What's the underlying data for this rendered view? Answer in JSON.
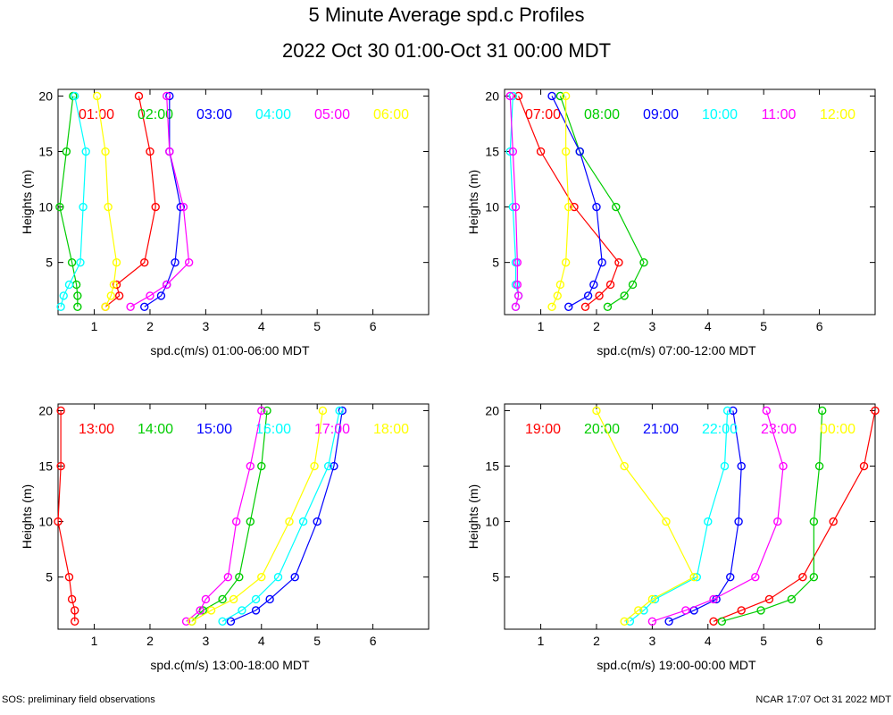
{
  "title": "5 Minute Average spd.c Profiles",
  "subtitle": "2022 Oct 30 01:00-Oct 31 00:00 MDT",
  "footer_left": "SOS: preliminary field observations",
  "footer_right": "NCAR 17:07 Oct 31 2022 MDT",
  "series_colors": [
    "#ff0000",
    "#00cc00",
    "#0000ff",
    "#00ffff",
    "#ff00ff",
    "#ffff00"
  ],
  "chart_data": [
    {
      "type": "line",
      "xlabel": "spd.c(m/s) 01:00-06:00 MDT",
      "ylabel": "Heights (m)",
      "xlim": [
        0.35,
        7.0
      ],
      "ylim": [
        0.3,
        20.6
      ],
      "xticks": [
        "1",
        "2",
        "3",
        "4",
        "5",
        "6"
      ],
      "yticks": [
        "5",
        "10",
        "15",
        "20"
      ],
      "heights": [
        1,
        2,
        3,
        5,
        10,
        15,
        20
      ],
      "series": [
        {
          "name": "01:00",
          "values": [
            1.2,
            1.45,
            1.4,
            1.9,
            2.1,
            2.0,
            1.8
          ]
        },
        {
          "name": "02:00",
          "values": [
            0.7,
            0.7,
            0.68,
            0.6,
            0.38,
            0.5,
            0.62
          ]
        },
        {
          "name": "03:00",
          "values": [
            1.9,
            2.2,
            2.3,
            2.45,
            2.55,
            2.35,
            2.35
          ]
        },
        {
          "name": "04:00",
          "values": [
            0.4,
            0.45,
            0.55,
            0.75,
            0.8,
            0.85,
            0.65
          ]
        },
        {
          "name": "05:00",
          "values": [
            1.65,
            2.0,
            2.3,
            2.7,
            2.6,
            2.35,
            2.3
          ]
        },
        {
          "name": "06:00",
          "values": [
            1.2,
            1.3,
            1.35,
            1.4,
            1.25,
            1.2,
            1.05
          ]
        }
      ]
    },
    {
      "type": "line",
      "xlabel": "spd.c(m/s) 07:00-12:00 MDT",
      "ylabel": "Heights (m)",
      "xlim": [
        0.35,
        7.0
      ],
      "ylim": [
        0.3,
        20.6
      ],
      "xticks": [
        "1",
        "2",
        "3",
        "4",
        "5",
        "6"
      ],
      "yticks": [
        "5",
        "10",
        "15",
        "20"
      ],
      "heights": [
        1,
        2,
        3,
        5,
        10,
        15,
        20
      ],
      "series": [
        {
          "name": "07:00",
          "values": [
            1.8,
            2.05,
            2.25,
            2.4,
            1.6,
            1.0,
            0.6
          ]
        },
        {
          "name": "08:00",
          "values": [
            2.2,
            2.5,
            2.65,
            2.85,
            2.35,
            1.7,
            1.35
          ]
        },
        {
          "name": "09:00",
          "values": [
            1.5,
            1.85,
            1.95,
            2.1,
            2.0,
            1.7,
            1.2
          ]
        },
        {
          "name": "10:00",
          "values": [
            0.55,
            0.6,
            0.55,
            0.55,
            0.5,
            0.45,
            0.5
          ]
        },
        {
          "name": "11:00",
          "values": [
            0.55,
            0.6,
            0.58,
            0.58,
            0.55,
            0.5,
            0.45
          ]
        },
        {
          "name": "12:00",
          "values": [
            1.2,
            1.3,
            1.35,
            1.45,
            1.5,
            1.45,
            1.45
          ]
        }
      ]
    },
    {
      "type": "line",
      "xlabel": "spd.c(m/s) 13:00-18:00 MDT",
      "ylabel": "Heights (m)",
      "xlim": [
        0.35,
        7.0
      ],
      "ylim": [
        0.3,
        20.6
      ],
      "xticks": [
        "1",
        "2",
        "3",
        "4",
        "5",
        "6"
      ],
      "yticks": [
        "5",
        "10",
        "15",
        "20"
      ],
      "heights": [
        1,
        2,
        3,
        5,
        10,
        15,
        20
      ],
      "series": [
        {
          "name": "13:00",
          "values": [
            0.65,
            0.65,
            0.6,
            0.55,
            0.35,
            0.4,
            0.4
          ]
        },
        {
          "name": "14:00",
          "values": [
            2.75,
            2.95,
            3.3,
            3.6,
            3.8,
            4.0,
            4.1
          ]
        },
        {
          "name": "15:00",
          "values": [
            3.45,
            3.9,
            4.15,
            4.6,
            5.0,
            5.3,
            5.45
          ]
        },
        {
          "name": "16:00",
          "values": [
            3.3,
            3.65,
            3.9,
            4.3,
            4.75,
            5.2,
            5.4
          ]
        },
        {
          "name": "17:00",
          "values": [
            2.65,
            2.9,
            3.0,
            3.4,
            3.55,
            3.8,
            4.0
          ]
        },
        {
          "name": "18:00",
          "values": [
            2.75,
            3.1,
            3.5,
            4.0,
            4.5,
            4.95,
            5.1
          ]
        }
      ]
    },
    {
      "type": "line",
      "xlabel": "spd.c(m/s) 19:00-00:00 MDT",
      "ylabel": "Heights (m)",
      "xlim": [
        0.35,
        7.0
      ],
      "ylim": [
        0.3,
        20.6
      ],
      "xticks": [
        "1",
        "2",
        "3",
        "4",
        "5",
        "6"
      ],
      "yticks": [
        "5",
        "10",
        "15",
        "20"
      ],
      "heights": [
        1,
        2,
        3,
        5,
        10,
        15,
        20
      ],
      "series": [
        {
          "name": "19:00",
          "values": [
            4.1,
            4.6,
            5.1,
            5.7,
            6.25,
            6.8,
            7.0
          ]
        },
        {
          "name": "20:00",
          "values": [
            4.25,
            4.95,
            5.5,
            5.9,
            5.9,
            6.0,
            6.05
          ]
        },
        {
          "name": "21:00",
          "values": [
            3.3,
            3.75,
            4.15,
            4.4,
            4.55,
            4.6,
            4.45
          ]
        },
        {
          "name": "22:00",
          "values": [
            2.6,
            2.85,
            3.05,
            3.8,
            4.0,
            4.3,
            4.35
          ]
        },
        {
          "name": "23:00",
          "values": [
            3.0,
            3.6,
            4.1,
            4.85,
            5.25,
            5.35,
            5.05
          ]
        },
        {
          "name": "00:00",
          "values": [
            2.5,
            2.75,
            3.0,
            3.75,
            3.25,
            2.5,
            2.0
          ]
        }
      ]
    }
  ]
}
